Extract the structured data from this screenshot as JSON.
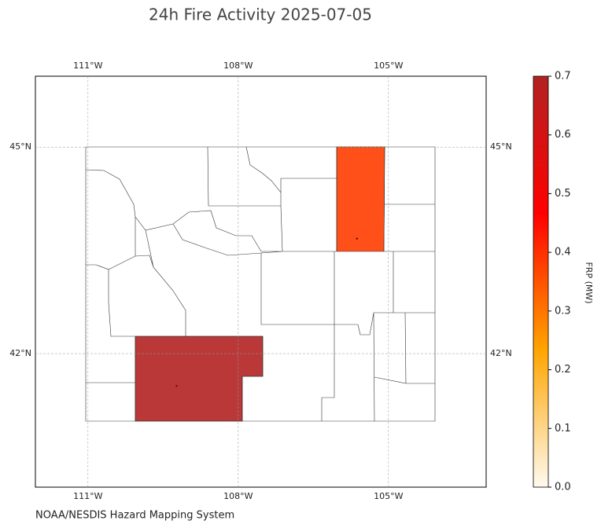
{
  "chart_data": {
    "type": "map",
    "title": "24h Fire Activity 2025-07-05",
    "source": "NOAA/NESDIS Hazard Mapping System",
    "xlim": [
      -112.05,
      -103.05
    ],
    "ylim": [
      40.06,
      46.03
    ],
    "xticks": [
      {
        "value": -111,
        "label": "111°W"
      },
      {
        "value": -108,
        "label": "108°W"
      },
      {
        "value": -105,
        "label": "105°W"
      }
    ],
    "yticks": [
      {
        "value": 45,
        "label": "45°N"
      },
      {
        "value": 42,
        "label": "42°N"
      }
    ],
    "grid": true,
    "regions": {
      "values": [
        0.7,
        0.38
      ]
    },
    "fires": {
      "lon": [
        -109.23,
        -105.63
      ],
      "lat": [
        41.53,
        43.67
      ],
      "color": "#5a1010"
    },
    "colorbar": {
      "label": "FRP (MW)",
      "lim": [
        0,
        0.7
      ],
      "ticks": [
        {
          "value": 0,
          "label": "0.0"
        },
        0.1,
        0.2,
        0.3,
        0.4,
        0.5,
        0.6,
        0.7
      ],
      "colormap": [
        "#fffaf0",
        "#ffa500",
        "#ff0000",
        "#b22222"
      ]
    }
  }
}
